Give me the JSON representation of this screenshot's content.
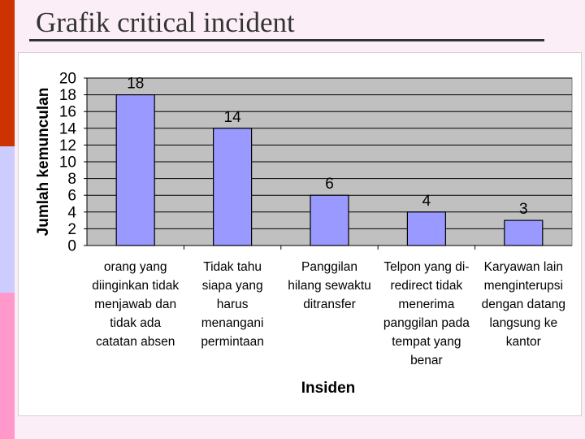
{
  "slide": {
    "title": "Grafik critical incident"
  },
  "colors": {
    "plot_bg": "#c0c0c0",
    "bar_fill": "#9999ff",
    "bar_stroke": "#000000",
    "stripe_top": "#cc3300",
    "stripe_mid": "#ccccff",
    "stripe_bottom": "#ff99cc"
  },
  "chart_data": {
    "type": "bar",
    "xlabel": "Insiden",
    "ylabel": "Jumlah kemunculan",
    "ylim": [
      0,
      20
    ],
    "yticks": [
      0,
      2,
      4,
      6,
      8,
      10,
      12,
      14,
      16,
      18,
      20
    ],
    "grid": true,
    "categories": [
      "orang yang diinginkan tidak menjawab dan tidak ada catatan absen",
      "Tidak tahu siapa yang harus menangani permintaan",
      "Panggilan hilang sewaktu ditransfer",
      "Telpon yang di-redirect tidak menerima panggilan pada tempat yang benar",
      "Karyawan lain menginterupsi dengan datang langsung ke kantor"
    ],
    "category_lines": [
      [
        "orang yang",
        "diinginkan tidak",
        "menjawab dan",
        "tidak ada",
        "catatan absen"
      ],
      [
        "Tidak tahu",
        "siapa yang",
        "harus",
        "menangani",
        "permintaan"
      ],
      [
        "Panggilan",
        "hilang sewaktu",
        "ditransfer"
      ],
      [
        "Telpon yang di-",
        "redirect tidak",
        "menerima",
        "panggilan pada",
        "tempat yang",
        "benar"
      ],
      [
        "Karyawan lain",
        "menginterupsi",
        "dengan datang",
        "langsung ke",
        "kantor"
      ]
    ],
    "values": [
      18,
      14,
      6,
      4,
      3
    ]
  }
}
